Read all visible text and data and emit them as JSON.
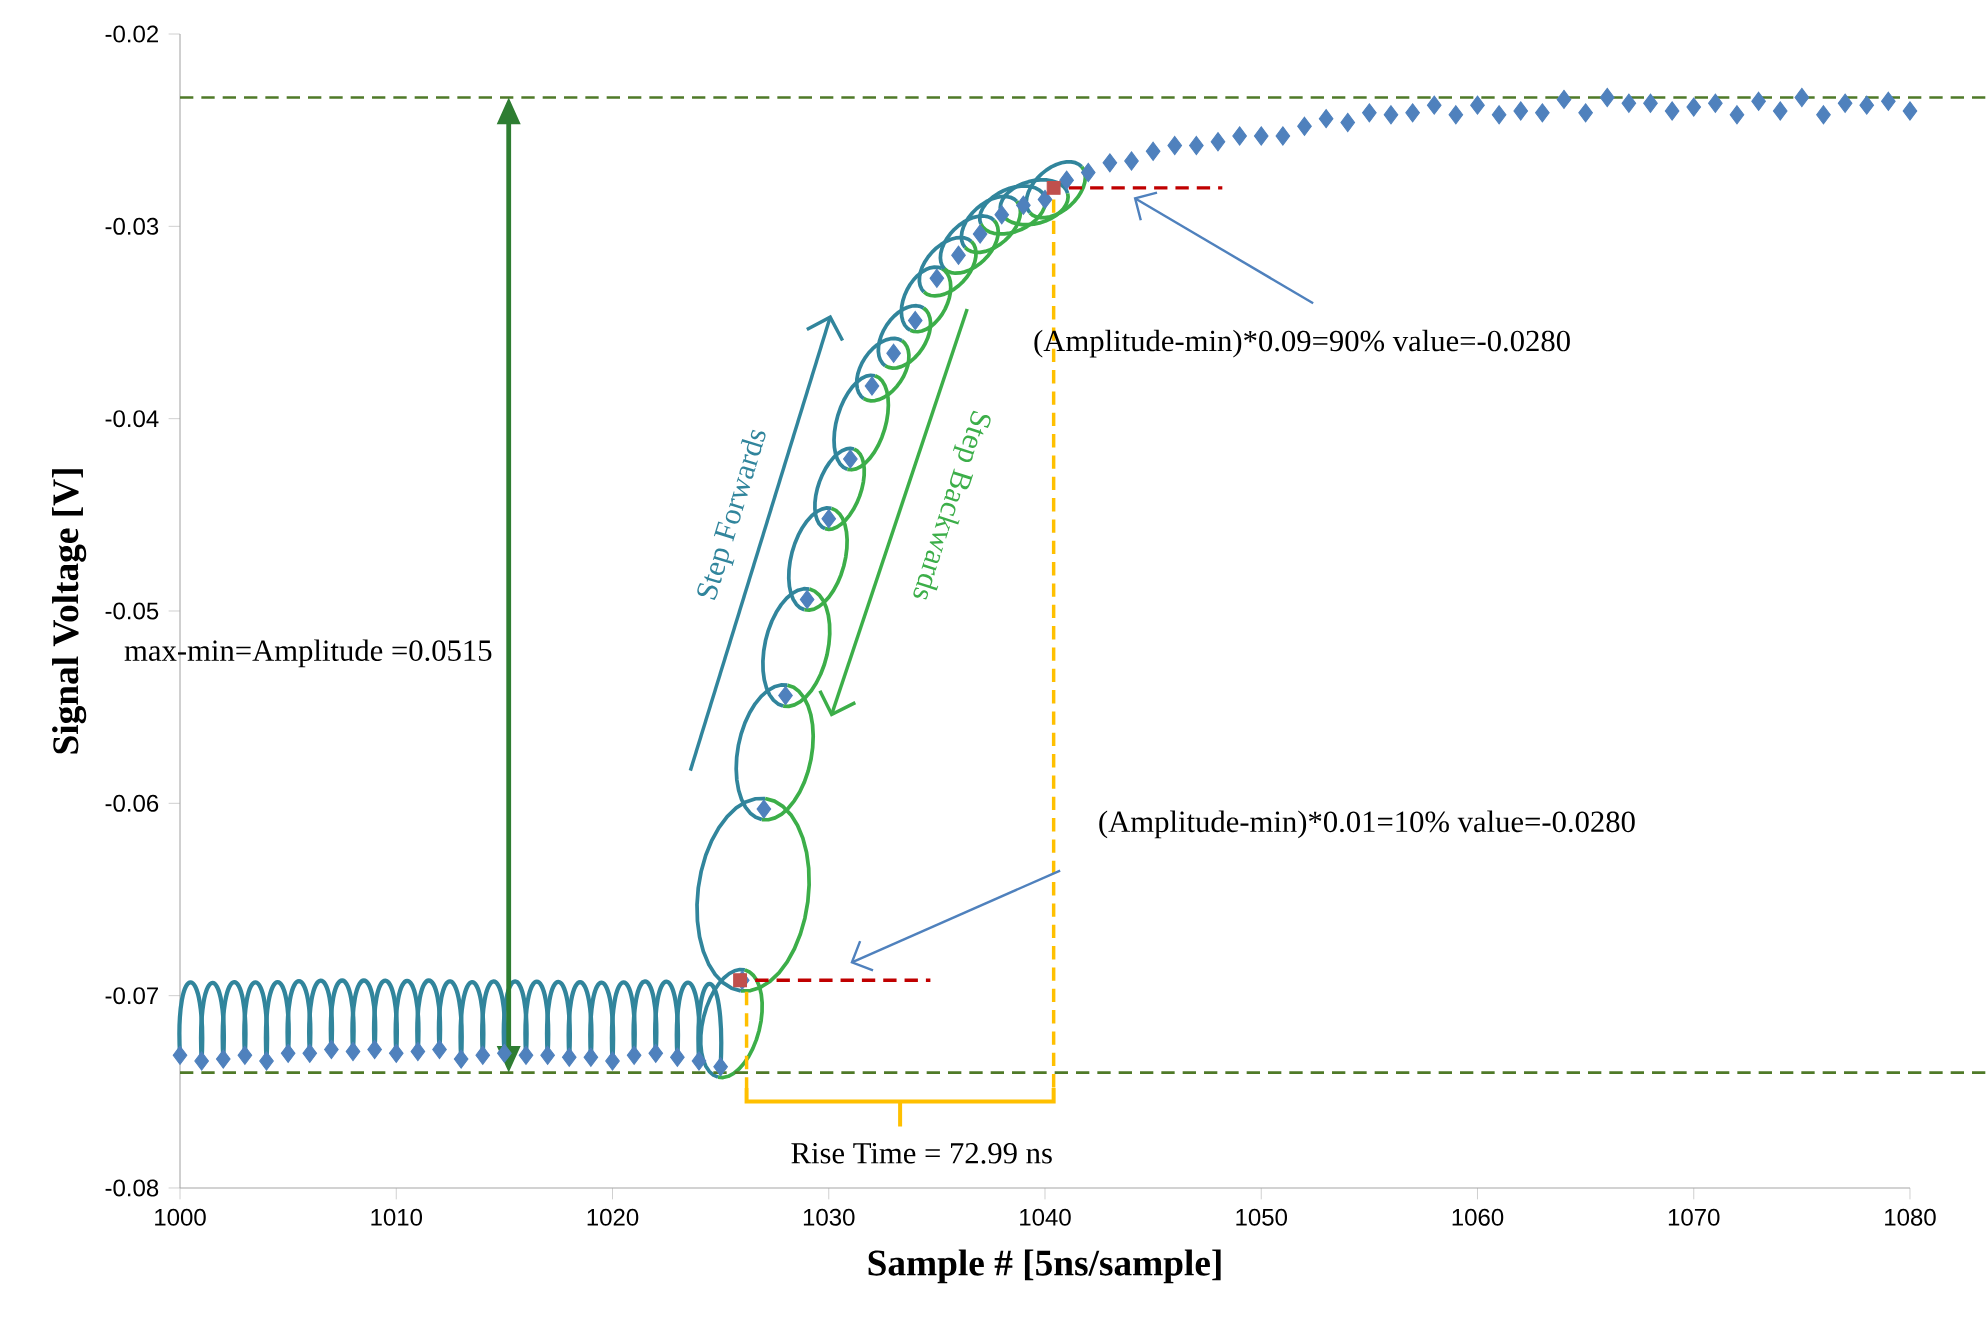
{
  "chart_data": {
    "type": "scatter",
    "marker": "diamond",
    "xlabel": "Sample # [5ns/sample]",
    "ylabel": "Signal Voltage [V]",
    "xlim": [
      1000,
      1080
    ],
    "xticks": [
      1000,
      1010,
      1020,
      1030,
      1040,
      1050,
      1060,
      1070,
      1080
    ],
    "ylim": [
      -0.08,
      -0.02
    ],
    "yticks": [
      -0.08,
      -0.07,
      -0.06,
      -0.05,
      -0.04,
      -0.03,
      -0.02
    ],
    "x": [
      1000,
      1001,
      1002,
      1003,
      1004,
      1005,
      1006,
      1007,
      1008,
      1009,
      1010,
      1011,
      1012,
      1013,
      1014,
      1015,
      1016,
      1017,
      1018,
      1019,
      1020,
      1021,
      1022,
      1023,
      1024,
      1025,
      1026,
      1027,
      1028,
      1029,
      1030,
      1031,
      1032,
      1033,
      1034,
      1035,
      1036,
      1037,
      1038,
      1039,
      1040,
      1041,
      1042,
      1043,
      1044,
      1045,
      1046,
      1047,
      1048,
      1049,
      1050,
      1051,
      1052,
      1053,
      1054,
      1055,
      1056,
      1057,
      1058,
      1059,
      1060,
      1061,
      1062,
      1063,
      1064,
      1065,
      1066,
      1067,
      1068,
      1069,
      1070,
      1071,
      1072,
      1073,
      1074,
      1075,
      1076,
      1077,
      1078,
      1079,
      1080
    ],
    "series": [
      {
        "color": "#4f81bd",
        "values": [
          -0.0731,
          -0.0734,
          -0.0733,
          -0.0731,
          -0.0734,
          -0.073,
          -0.073,
          -0.0728,
          -0.0729,
          -0.0728,
          -0.073,
          -0.0729,
          -0.0728,
          -0.0733,
          -0.0731,
          -0.073,
          -0.0731,
          -0.0731,
          -0.0732,
          -0.0732,
          -0.0734,
          -0.0731,
          -0.073,
          -0.0732,
          -0.0734,
          -0.0737,
          -0.0692,
          -0.0603,
          -0.0544,
          -0.0494,
          -0.0452,
          -0.0421,
          -0.0383,
          -0.0366,
          -0.0349,
          -0.0327,
          -0.0315,
          -0.0304,
          -0.0294,
          -0.0289,
          -0.0286,
          -0.0276,
          -0.0272,
          -0.0267,
          -0.0266,
          -0.0261,
          -0.0258,
          -0.0258,
          -0.0256,
          -0.0253,
          -0.0253,
          -0.0253,
          -0.0248,
          -0.0244,
          -0.0246,
          -0.0241,
          -0.0242,
          -0.0241,
          -0.0237,
          -0.0242,
          -0.0237,
          -0.0242,
          -0.024,
          -0.0241,
          -0.0234,
          -0.0241,
          -0.0233,
          -0.0236,
          -0.0236,
          -0.024,
          -0.0238,
          -0.0236,
          -0.0242,
          -0.0235,
          -0.024,
          -0.0233,
          -0.0242,
          -0.0236,
          -0.0237,
          -0.0235,
          -0.024
        ]
      },
      {
        "color": "#c0504d",
        "marker": "square",
        "x": [
          1025.9,
          1040.4
        ],
        "values": [
          -0.0692,
          -0.028
        ]
      },
      {
        "type": "line",
        "color": "#c00000",
        "marker": "none",
        "line_style": "dashed",
        "x": [
          1026.6,
          1034.7
        ],
        "values": [
          -0.0692,
          -0.0692
        ]
      },
      {
        "type": "line",
        "color": "#c00000",
        "marker": "none",
        "line_style": "dashed",
        "x": [
          1041.1,
          1048.2
        ],
        "values": [
          -0.028,
          -0.028
        ]
      },
      {
        "type": "line",
        "color": "#ffc000",
        "marker": "none",
        "line_style": "dashed",
        "x": [
          1026.2,
          1026.2
        ],
        "values": [
          -0.0698,
          -0.0748
        ]
      },
      {
        "type": "line",
        "color": "#ffc000",
        "marker": "none",
        "line_style": "dashed",
        "x": [
          1040.4,
          1040.4
        ],
        "values": [
          -0.0286,
          -0.0748
        ]
      }
    ],
    "ref_lines": [
      {
        "axis": "y",
        "value": -0.0233,
        "color": "#4f7a28",
        "line_style": "dashed"
      },
      {
        "axis": "y",
        "value": -0.074,
        "color": "#4f7a28",
        "line_style": "dashed"
      }
    ],
    "annotations": [
      "max-min=Amplitude =0.0515",
      "(Amplitude-min)*0.09=90% value=-0.0280",
      "(Amplitude-min)*0.01=10% value=-0.0280",
      "Step Forwards",
      "Step Backwards",
      "Rise Time = 72.99 ns"
    ]
  }
}
